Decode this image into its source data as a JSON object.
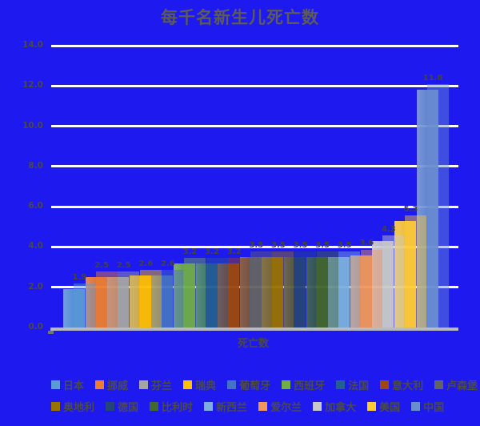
{
  "title": "每千名新生儿死亡数",
  "colors": {
    "background": "#1e19ef",
    "title_text": "#5c5c54",
    "axis_text": "#4a4a42",
    "value_label_text": "#454534",
    "legend_text": "#4c4c44",
    "gridline": "#ffffff",
    "floor": "#b7bac1",
    "floor_notch": "#70747c"
  },
  "chart_data": {
    "type": "bar",
    "title": "每千名新生儿死亡数",
    "xlabel": "死亡数",
    "ylabel": "",
    "ylim": [
      0,
      14
    ],
    "ytick_step": 2,
    "ytick_labels": [
      "0.0",
      "2.0",
      "4.0",
      "6.0",
      "8.0",
      "10.0",
      "12.0",
      "14.0"
    ],
    "grid": true,
    "legend_position": "bottom-two-rows",
    "style": "3d-column-on-blue",
    "series": [
      {
        "name": "日本",
        "value": 1.9,
        "color": "#5b9bd5"
      },
      {
        "name": "挪威",
        "value": 2.5,
        "color": "#ed7d31"
      },
      {
        "name": "芬兰",
        "value": 2.5,
        "color": "#a5a5a5"
      },
      {
        "name": "瑞典",
        "value": 2.6,
        "color": "#ffc000"
      },
      {
        "name": "葡萄牙",
        "value": 2.6,
        "color": "#4472c4"
      },
      {
        "name": "西班牙",
        "value": 3.2,
        "color": "#70ad47"
      },
      {
        "name": "法国",
        "value": 3.2,
        "color": "#255e91"
      },
      {
        "name": "意大利",
        "value": 3.2,
        "color": "#9e480e"
      },
      {
        "name": "卢森堡",
        "value": 3.5,
        "color": "#636363"
      },
      {
        "name": "奥地利",
        "value": 3.5,
        "color": "#997300"
      },
      {
        "name": "德国",
        "value": 3.5,
        "color": "#264478"
      },
      {
        "name": "比利时",
        "value": 3.5,
        "color": "#43682b"
      },
      {
        "name": "新西兰",
        "value": 3.5,
        "color": "#7cafdd"
      },
      {
        "name": "爱尔兰",
        "value": 3.6,
        "color": "#f1975a"
      },
      {
        "name": "加拿大",
        "value": 4.3,
        "color": "#c9c9c9"
      },
      {
        "name": "美国",
        "value": 5.3,
        "color": "#ffcd33"
      },
      {
        "name": "中国",
        "value": 11.8,
        "color": "#698ed0"
      }
    ],
    "legend_rows": [
      9,
      8
    ]
  }
}
